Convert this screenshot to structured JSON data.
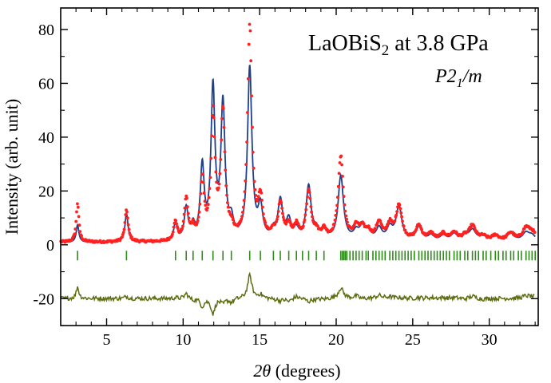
{
  "chart_data": {
    "type": "line",
    "title": "LaOBiS₂ at 3.8 GPa",
    "title_main": "LaOBiS",
    "title_sub": "2",
    "title_rest": " at 3.8 GPa",
    "space_group": {
      "p": "P2",
      "sub": "1",
      "rest": "/m"
    },
    "xlabel_theta": "2θ",
    "xlabel_rest": " (degrees)",
    "ylabel": "Intensity (arb. unit)",
    "xlim": [
      2,
      33.2
    ],
    "ylim": [
      -30,
      88
    ],
    "xticks": [
      5,
      10,
      15,
      20,
      25,
      30
    ],
    "yticks": [
      -20,
      0,
      20,
      40,
      60,
      80
    ],
    "xtick_labels": [
      "5",
      "10",
      "15",
      "20",
      "25",
      "30"
    ],
    "ytick_labels": [
      "-20",
      "0",
      "20",
      "40",
      "60",
      "80"
    ],
    "colors": {
      "observed": "#ff2020",
      "calculated": "#1f3f8a",
      "reflections": "#2e8b1a",
      "difference": "#5f6b10"
    },
    "peaks": [
      {
        "x": 3.1,
        "calc": 6.5,
        "obs": 14.5
      },
      {
        "x": 6.3,
        "calc": 10.5,
        "obs": 12
      },
      {
        "x": 9.5,
        "calc": 6.5,
        "obs": 7
      },
      {
        "x": 10.2,
        "calc": 12,
        "obs": 15.5
      },
      {
        "x": 10.65,
        "calc": 5,
        "obs": 4
      },
      {
        "x": 11.25,
        "calc": 27,
        "obs": 22
      },
      {
        "x": 11.95,
        "calc": 56,
        "obs": 46
      },
      {
        "x": 12.6,
        "calc": 50,
        "obs": 47
      },
      {
        "x": 13.15,
        "calc": 6,
        "obs": 3.5
      },
      {
        "x": 14.35,
        "calc": 64,
        "obs": 79.5
      },
      {
        "x": 15.05,
        "calc": 11.5,
        "obs": 14
      },
      {
        "x": 15.9,
        "calc": 3,
        "obs": 2.5
      },
      {
        "x": 16.35,
        "calc": 14.5,
        "obs": 13
      },
      {
        "x": 16.9,
        "calc": 7,
        "obs": 5
      },
      {
        "x": 17.4,
        "calc": 3.5,
        "obs": 5
      },
      {
        "x": 18.2,
        "calc": 20,
        "obs": 18
      },
      {
        "x": 18.7,
        "calc": 3,
        "obs": 2.5
      },
      {
        "x": 19.2,
        "calc": 4,
        "obs": 3.5
      },
      {
        "x": 20.3,
        "calc": 24,
        "obs": 31
      },
      {
        "x": 21.3,
        "calc": 3,
        "obs": 4.5
      },
      {
        "x": 21.7,
        "calc": 4.5,
        "obs": 4
      },
      {
        "x": 22.1,
        "calc": 3,
        "obs": 3
      },
      {
        "x": 22.8,
        "calc": 4.5,
        "obs": 6.5
      },
      {
        "x": 23.5,
        "calc": 4.5,
        "obs": 5.5
      },
      {
        "x": 24.1,
        "calc": 12.5,
        "obs": 13
      },
      {
        "x": 25.4,
        "calc": 5,
        "obs": 5.5
      },
      {
        "x": 26.2,
        "calc": 2,
        "obs": 2.5
      },
      {
        "x": 27.0,
        "calc": 2,
        "obs": 2.5
      },
      {
        "x": 27.7,
        "calc": 2.5,
        "obs": 3
      },
      {
        "x": 28.4,
        "calc": 2,
        "obs": 1.5
      },
      {
        "x": 28.9,
        "calc": 4,
        "obs": 5.5
      },
      {
        "x": 29.6,
        "calc": 2,
        "obs": 1.5
      },
      {
        "x": 30.4,
        "calc": 2,
        "obs": 2
      },
      {
        "x": 31.4,
        "calc": 3,
        "obs": 3
      },
      {
        "x": 32.4,
        "calc": 3,
        "obs": 4.5
      },
      {
        "x": 32.8,
        "calc": 2,
        "obs": 3
      }
    ],
    "reflection_y": -4,
    "reflections": [
      3.1,
      6.3,
      9.5,
      10.2,
      10.65,
      11.25,
      11.95,
      12.6,
      13.15,
      14.35,
      15.05,
      15.9,
      16.35,
      16.9,
      17.4,
      17.8,
      18.2,
      18.7,
      19.2,
      20.3,
      20.4,
      20.5,
      20.6,
      20.7,
      20.9,
      21.1,
      21.3,
      21.5,
      21.7,
      21.95,
      22.1,
      22.4,
      22.6,
      22.8,
      23.0,
      23.2,
      23.5,
      23.7,
      23.9,
      24.1,
      24.3,
      24.5,
      24.7,
      24.9,
      25.1,
      25.4,
      25.6,
      25.8,
      26.0,
      26.2,
      26.4,
      26.6,
      26.8,
      27.0,
      27.2,
      27.4,
      27.7,
      27.9,
      28.1,
      28.4,
      28.6,
      28.9,
      29.1,
      29.3,
      29.6,
      29.8,
      30.1,
      30.4,
      30.6,
      30.9,
      31.1,
      31.4,
      31.6,
      31.9,
      32.1,
      32.4,
      32.6,
      32.8,
      33.0
    ],
    "difference_offset": -20
  }
}
